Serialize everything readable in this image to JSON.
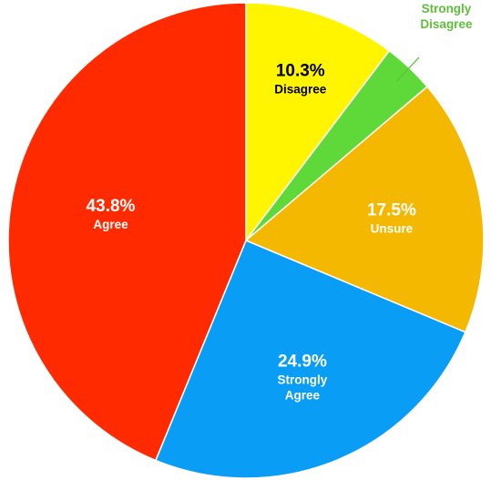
{
  "chart_data": {
    "type": "pie",
    "start_angle_deg": 0,
    "direction": "clockwise",
    "slices": [
      {
        "label_lines": [
          "Disagree"
        ],
        "percent_label": "10.3%",
        "value": 10.3,
        "color": "#FFF500",
        "text_color": "#000000"
      },
      {
        "label_lines": [
          "Strongly",
          "Disagree"
        ],
        "percent_label": "3.5%",
        "value": 3.5,
        "color": "#5FD93A",
        "text_color": "#5FBF3A",
        "label_outside": true
      },
      {
        "label_lines": [
          "Unsure"
        ],
        "percent_label": "17.5%",
        "value": 17.5,
        "color": "#F5B800",
        "text_color": "#FFFFFF"
      },
      {
        "label_lines": [
          "Strongly",
          "Agree"
        ],
        "percent_label": "24.9%",
        "value": 24.9,
        "color": "#0A9DF5",
        "text_color": "#FFFFFF"
      },
      {
        "label_lines": [
          "Agree"
        ],
        "percent_label": "43.8%",
        "value": 43.8,
        "color": "#FF2A00",
        "text_color": "#FFFFFF"
      }
    ]
  }
}
